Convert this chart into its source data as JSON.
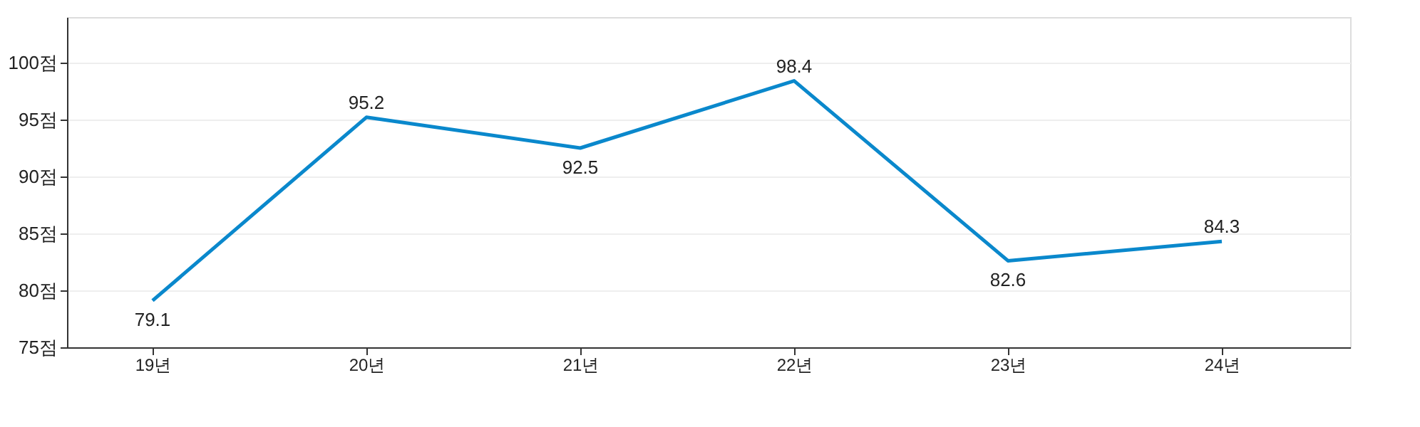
{
  "chart_data": {
    "type": "line",
    "categories": [
      "19년",
      "20년",
      "21년",
      "22년",
      "23년",
      "24년"
    ],
    "series": [
      {
        "color": "#0a88cc",
        "values": [
          79.1,
          95.2,
          92.5,
          98.4,
          82.6,
          84.3
        ]
      }
    ],
    "ylim": [
      75,
      104
    ],
    "yticks": [
      {
        "value": 75,
        "label": "75점"
      },
      {
        "value": 80,
        "label": "80점"
      },
      {
        "value": 85,
        "label": "85점"
      },
      {
        "value": 90,
        "label": "90점"
      },
      {
        "value": 95,
        "label": "95점"
      },
      {
        "value": 100,
        "label": "100점"
      }
    ],
    "grid": "y",
    "data_labels": true,
    "marker": "none",
    "line_style": "solid"
  }
}
